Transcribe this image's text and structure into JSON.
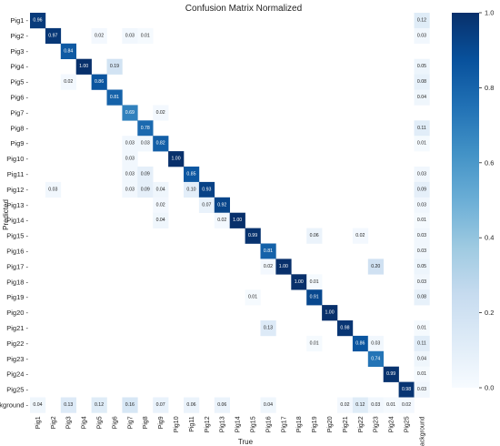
{
  "chart_data": {
    "type": "heatmap",
    "title": "Confusion Matrix Normalized",
    "xlabel": "True",
    "ylabel": "Predicted",
    "row_labels": [
      "Pig1",
      "Pig2",
      "Pig3",
      "Pig4",
      "Pig5",
      "Pig6",
      "Pig7",
      "Pig8",
      "Pig9",
      "Pig10",
      "Pig11",
      "Pig12",
      "Pig13",
      "Pig14",
      "Pig15",
      "Pig16",
      "Pig17",
      "Pig18",
      "Pig19",
      "Pig20",
      "Pig21",
      "Pig22",
      "Pig23",
      "Pig24",
      "Pig25",
      "background"
    ],
    "col_labels": [
      "Pig1",
      "Pig2",
      "Pig3",
      "Pig4",
      "Pig5",
      "Pig6",
      "Pig7",
      "Pig8",
      "Pig9",
      "Pig10",
      "Pig11",
      "Pig12",
      "Pig13",
      "Pig14",
      "Pig15",
      "Pig16",
      "Pig17",
      "Pig18",
      "Pig19",
      "Pig20",
      "Pig21",
      "Pig22",
      "Pig23",
      "Pig24",
      "Pig25",
      "background"
    ],
    "cells": [
      [
        0,
        0,
        0.96
      ],
      [
        0,
        25,
        0.12
      ],
      [
        1,
        1,
        0.97
      ],
      [
        1,
        4,
        0.02
      ],
      [
        1,
        6,
        0.03
      ],
      [
        1,
        7,
        0.01
      ],
      [
        1,
        25,
        0.03
      ],
      [
        2,
        2,
        0.84
      ],
      [
        3,
        3,
        1.0
      ],
      [
        3,
        5,
        0.19
      ],
      [
        3,
        25,
        0.05
      ],
      [
        4,
        2,
        0.02
      ],
      [
        4,
        4,
        0.86
      ],
      [
        4,
        25,
        0.08
      ],
      [
        5,
        5,
        0.81
      ],
      [
        5,
        25,
        0.04
      ],
      [
        6,
        6,
        0.69
      ],
      [
        6,
        8,
        0.02
      ],
      [
        7,
        7,
        0.78
      ],
      [
        7,
        25,
        0.11
      ],
      [
        8,
        6,
        0.03
      ],
      [
        8,
        7,
        0.03
      ],
      [
        8,
        8,
        0.82
      ],
      [
        8,
        25,
        0.01
      ],
      [
        9,
        6,
        0.03
      ],
      [
        9,
        9,
        1.0
      ],
      [
        10,
        6,
        0.03
      ],
      [
        10,
        7,
        0.09
      ],
      [
        10,
        10,
        0.85
      ],
      [
        10,
        25,
        0.03
      ],
      [
        11,
        1,
        0.03
      ],
      [
        11,
        6,
        0.03
      ],
      [
        11,
        7,
        0.09
      ],
      [
        11,
        8,
        0.04
      ],
      [
        11,
        10,
        0.1
      ],
      [
        11,
        11,
        0.93
      ],
      [
        11,
        25,
        0.09
      ],
      [
        12,
        8,
        0.02
      ],
      [
        12,
        11,
        0.07
      ],
      [
        12,
        12,
        0.92
      ],
      [
        12,
        25,
        0.03
      ],
      [
        13,
        8,
        0.04
      ],
      [
        13,
        12,
        0.02
      ],
      [
        13,
        13,
        1.0
      ],
      [
        13,
        25,
        0.01
      ],
      [
        14,
        14,
        0.99
      ],
      [
        14,
        18,
        0.06
      ],
      [
        14,
        21,
        0.02
      ],
      [
        14,
        25,
        0.03
      ],
      [
        15,
        15,
        0.81
      ],
      [
        15,
        25,
        0.03
      ],
      [
        16,
        15,
        0.02
      ],
      [
        16,
        16,
        1.0
      ],
      [
        16,
        22,
        0.2
      ],
      [
        16,
        25,
        0.05
      ],
      [
        17,
        17,
        1.0
      ],
      [
        17,
        18,
        0.01
      ],
      [
        17,
        25,
        0.03
      ],
      [
        18,
        14,
        0.01
      ],
      [
        18,
        18,
        0.91
      ],
      [
        18,
        25,
        0.08
      ],
      [
        19,
        19,
        1.0
      ],
      [
        20,
        15,
        0.13
      ],
      [
        20,
        20,
        0.98
      ],
      [
        20,
        25,
        0.01
      ],
      [
        21,
        18,
        0.01
      ],
      [
        21,
        21,
        0.86
      ],
      [
        21,
        22,
        0.03
      ],
      [
        21,
        25,
        0.11
      ],
      [
        22,
        22,
        0.74
      ],
      [
        22,
        25,
        0.04
      ],
      [
        23,
        23,
        0.99
      ],
      [
        23,
        25,
        0.01
      ],
      [
        24,
        24,
        0.98
      ],
      [
        24,
        25,
        0.03
      ],
      [
        25,
        0,
        0.04
      ],
      [
        25,
        2,
        0.13
      ],
      [
        25,
        4,
        0.12
      ],
      [
        25,
        6,
        0.16
      ],
      [
        25,
        8,
        0.07
      ],
      [
        25,
        10,
        0.06
      ],
      [
        25,
        12,
        0.06
      ],
      [
        25,
        15,
        0.04
      ],
      [
        25,
        20,
        0.02
      ],
      [
        25,
        21,
        0.12
      ],
      [
        25,
        22,
        0.03
      ],
      [
        25,
        23,
        0.01
      ],
      [
        25,
        24,
        0.02
      ]
    ],
    "value_range": [
      0.0,
      1.0
    ],
    "colorbar_ticks": [
      0.0,
      0.2,
      0.4,
      0.6,
      0.8,
      1.0
    ],
    "colormap": "Blues",
    "grid": false,
    "legend": "colorbar-right"
  }
}
